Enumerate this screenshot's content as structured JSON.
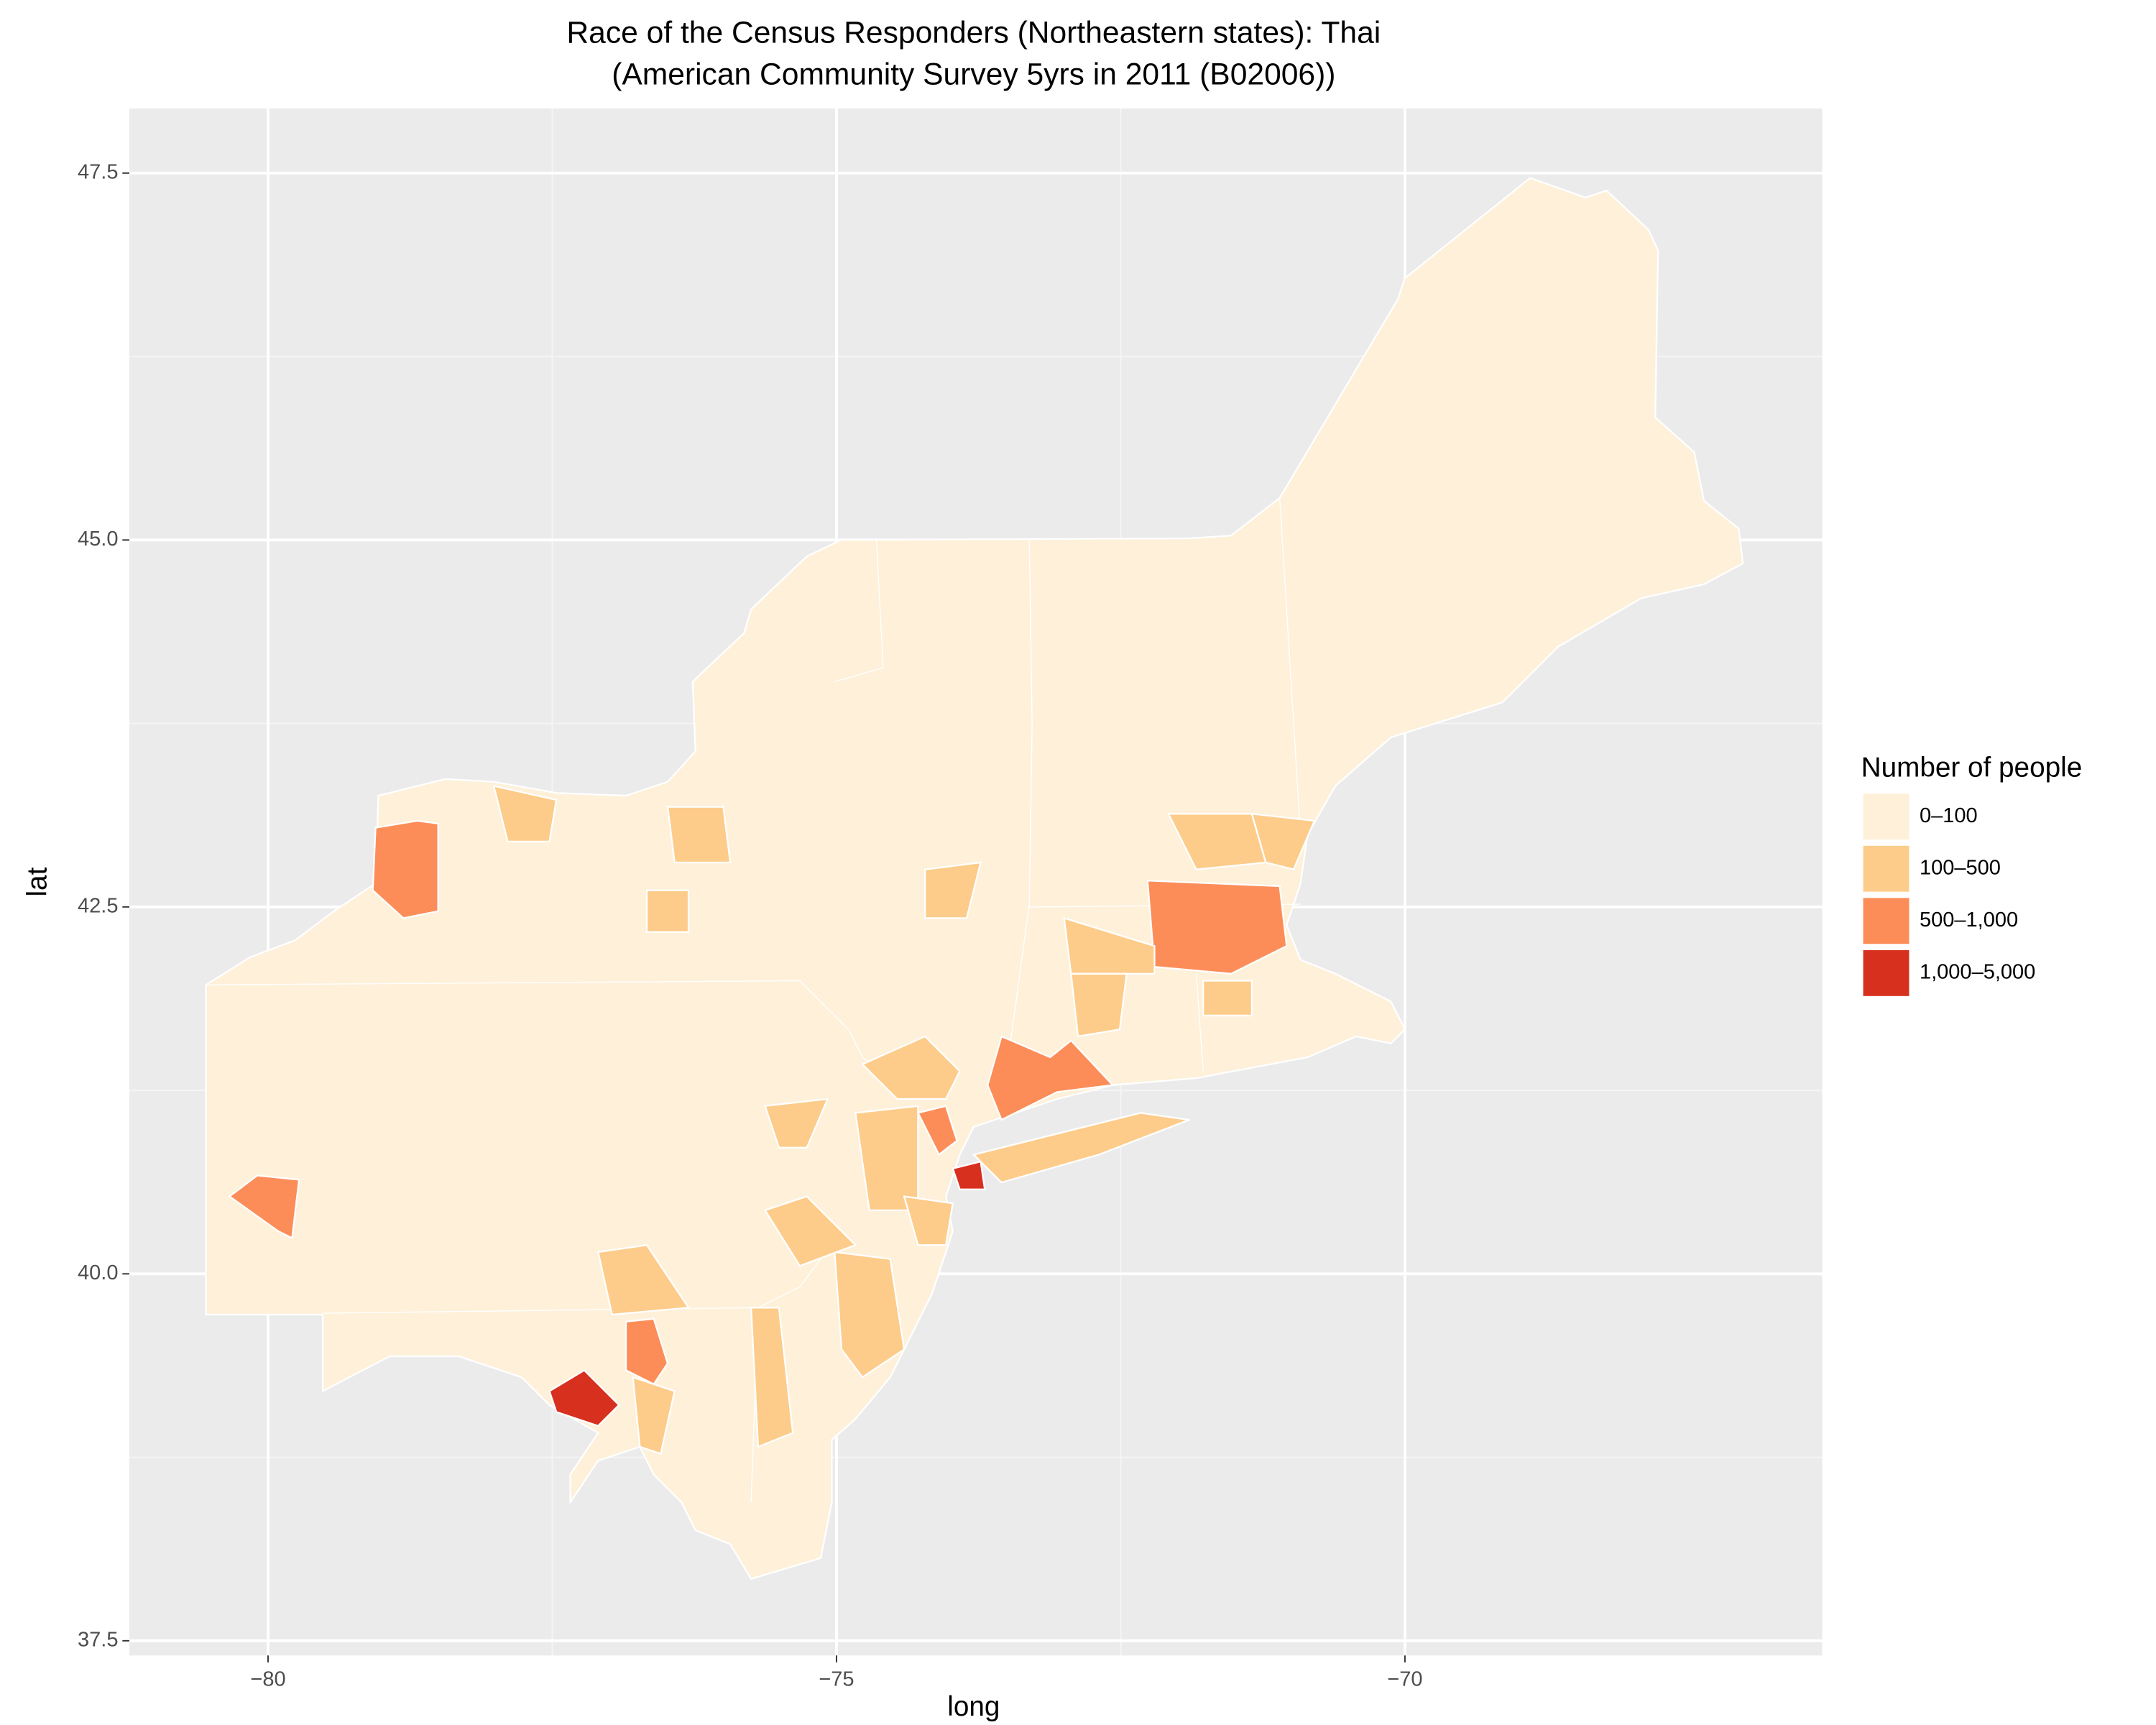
{
  "chart_data": {
    "type": "choropleth",
    "title": "Race of the Census Responders (Northeastern states): Thai",
    "subtitle": "(American Community Survey 5yrs in 2011 (B02006))",
    "x_label": "long",
    "y_label": "lat",
    "xlim": [
      -81.22,
      -66.33
    ],
    "ylim": [
      37.4,
      47.94
    ],
    "xticks": [
      {
        "value": -80,
        "label": "−80"
      },
      {
        "value": -75,
        "label": "−75"
      },
      {
        "value": -70,
        "label": "−70"
      }
    ],
    "yticks": [
      {
        "value": 37.5,
        "label": "37.5"
      },
      {
        "value": 40,
        "label": "40.0"
      },
      {
        "value": 42.5,
        "label": "42.5"
      },
      {
        "value": 45,
        "label": "45.0"
      },
      {
        "value": 47.5,
        "label": "47.5"
      }
    ],
    "grid": true,
    "legend": {
      "title": "Number of people",
      "position": "right",
      "categories": [
        "0–100",
        "100–500",
        "500–1,000",
        "1,000–5,000"
      ],
      "colors": [
        "#fef0d9",
        "#fdcc8a",
        "#fc8d59",
        "#d7301f"
      ]
    }
  }
}
